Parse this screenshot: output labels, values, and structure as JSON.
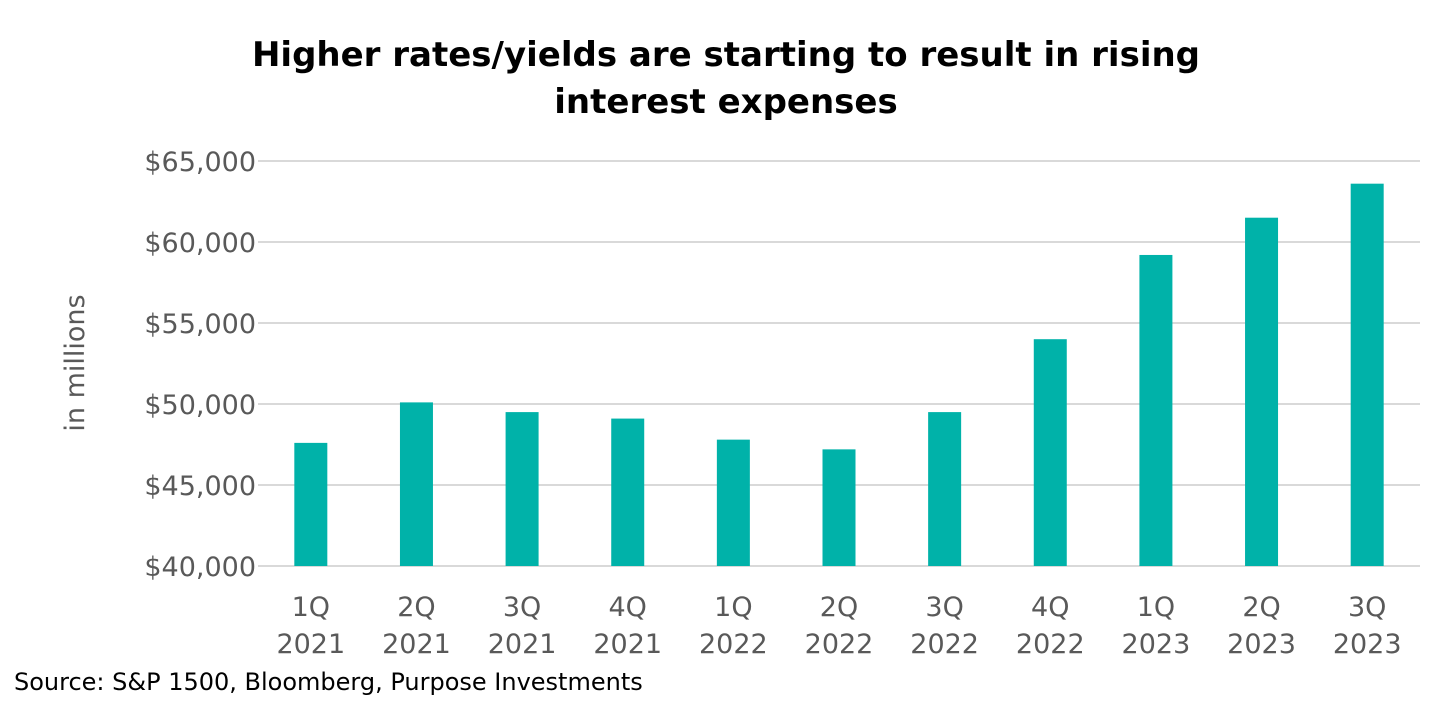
{
  "chart_data": {
    "type": "bar",
    "title_lines": [
      "Higher rates/yields are starting to result in rising",
      "interest expenses"
    ],
    "ylabel": "in millions",
    "xlabel": "",
    "categories": [
      [
        "1Q",
        "2021"
      ],
      [
        "2Q",
        "2021"
      ],
      [
        "3Q",
        "2021"
      ],
      [
        "4Q",
        "2021"
      ],
      [
        "1Q",
        "2022"
      ],
      [
        "2Q",
        "2022"
      ],
      [
        "3Q",
        "2022"
      ],
      [
        "4Q",
        "2022"
      ],
      [
        "1Q",
        "2023"
      ],
      [
        "2Q",
        "2023"
      ],
      [
        "3Q",
        "2023"
      ]
    ],
    "series": [
      {
        "name": "Interest expense",
        "color": "#00B2A9",
        "values": [
          47600,
          50100,
          49500,
          49100,
          47800,
          47200,
          49500,
          54000,
          59200,
          61500,
          63600
        ]
      }
    ],
    "ylim": [
      40000,
      65000
    ],
    "yticks": [
      40000,
      45000,
      50000,
      55000,
      60000,
      65000
    ],
    "ytick_labels": [
      "$40,000",
      "$45,000",
      "$50,000",
      "$55,000",
      "$60,000",
      "$65,000"
    ],
    "grid": true,
    "grid_color": "#D9D9D9"
  },
  "source": "Source: S&P 1500, Bloomberg, Purpose Investments"
}
